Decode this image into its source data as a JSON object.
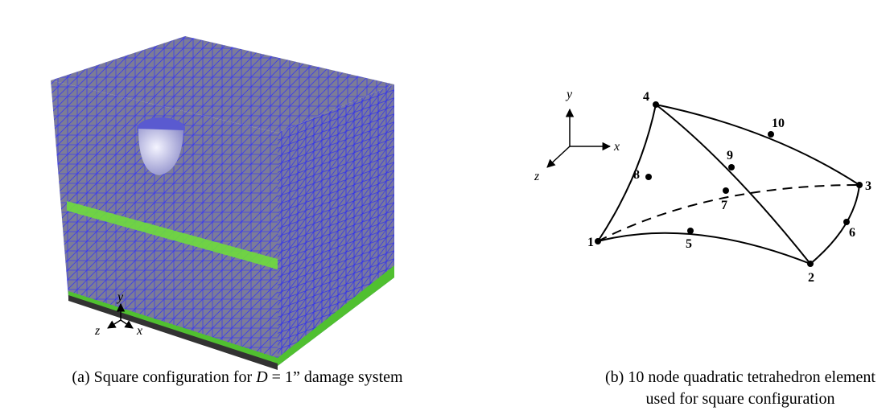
{
  "panel_a": {
    "axes": {
      "y": "y",
      "z": "z",
      "x": "x"
    },
    "caption": {
      "prefix": "(a) Square configuration for ",
      "variable": "D",
      "suffix": " = 1” damage system"
    }
  },
  "panel_b": {
    "axes": {
      "y": "y",
      "x": "x",
      "z": "z"
    },
    "nodes": [
      "1",
      "2",
      "3",
      "4",
      "5",
      "6",
      "7",
      "8",
      "9",
      "10"
    ],
    "caption": {
      "lines": [
        "(b) 10 node quadratic tetrahedron element",
        "used for square configuration"
      ]
    }
  }
}
